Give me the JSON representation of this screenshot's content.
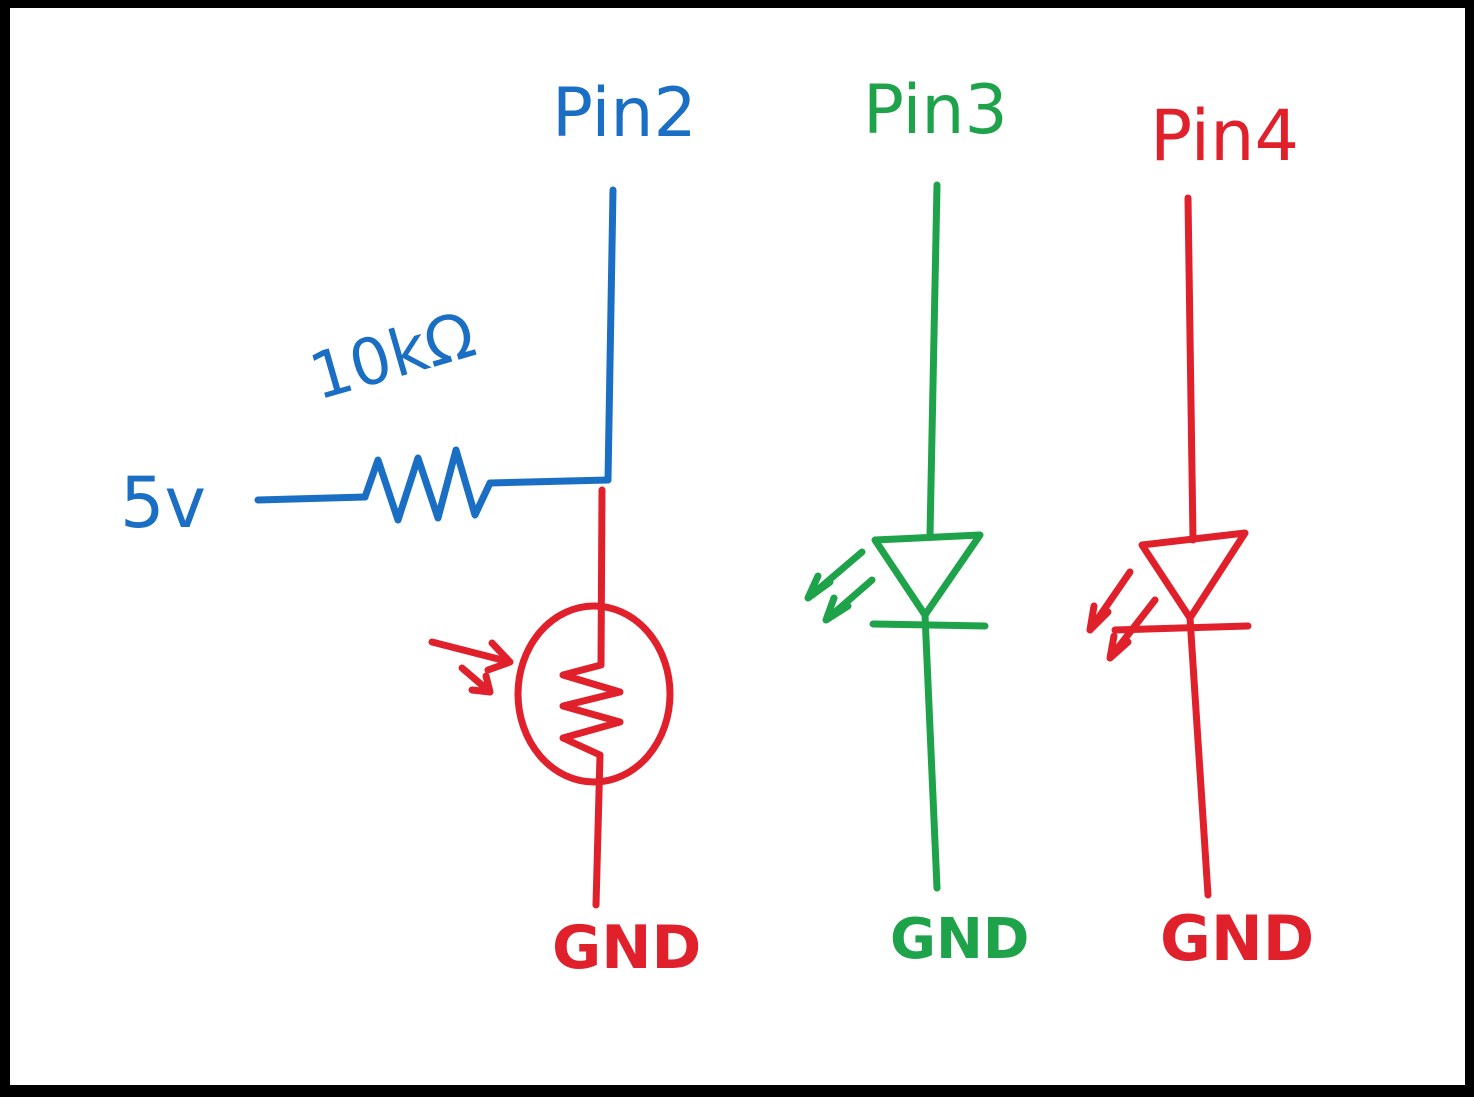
{
  "colors": {
    "blue": "#1a6fc4",
    "green": "#1fa34a",
    "red": "#e0202a",
    "frame": "#000000",
    "paper": "#ffffff"
  },
  "labels": {
    "pin2": "Pin2",
    "pin3": "Pin3",
    "pin4": "Pin4",
    "supply": "5v",
    "resistor_value": "10kΩ",
    "gnd_ldr": "GND",
    "gnd_pin3": "GND",
    "gnd_pin4": "GND"
  },
  "components": [
    {
      "type": "resistor",
      "value": "10kΩ"
    },
    {
      "type": "photoresistor"
    },
    {
      "type": "led",
      "color": "green"
    },
    {
      "type": "led",
      "color": "red"
    }
  ]
}
